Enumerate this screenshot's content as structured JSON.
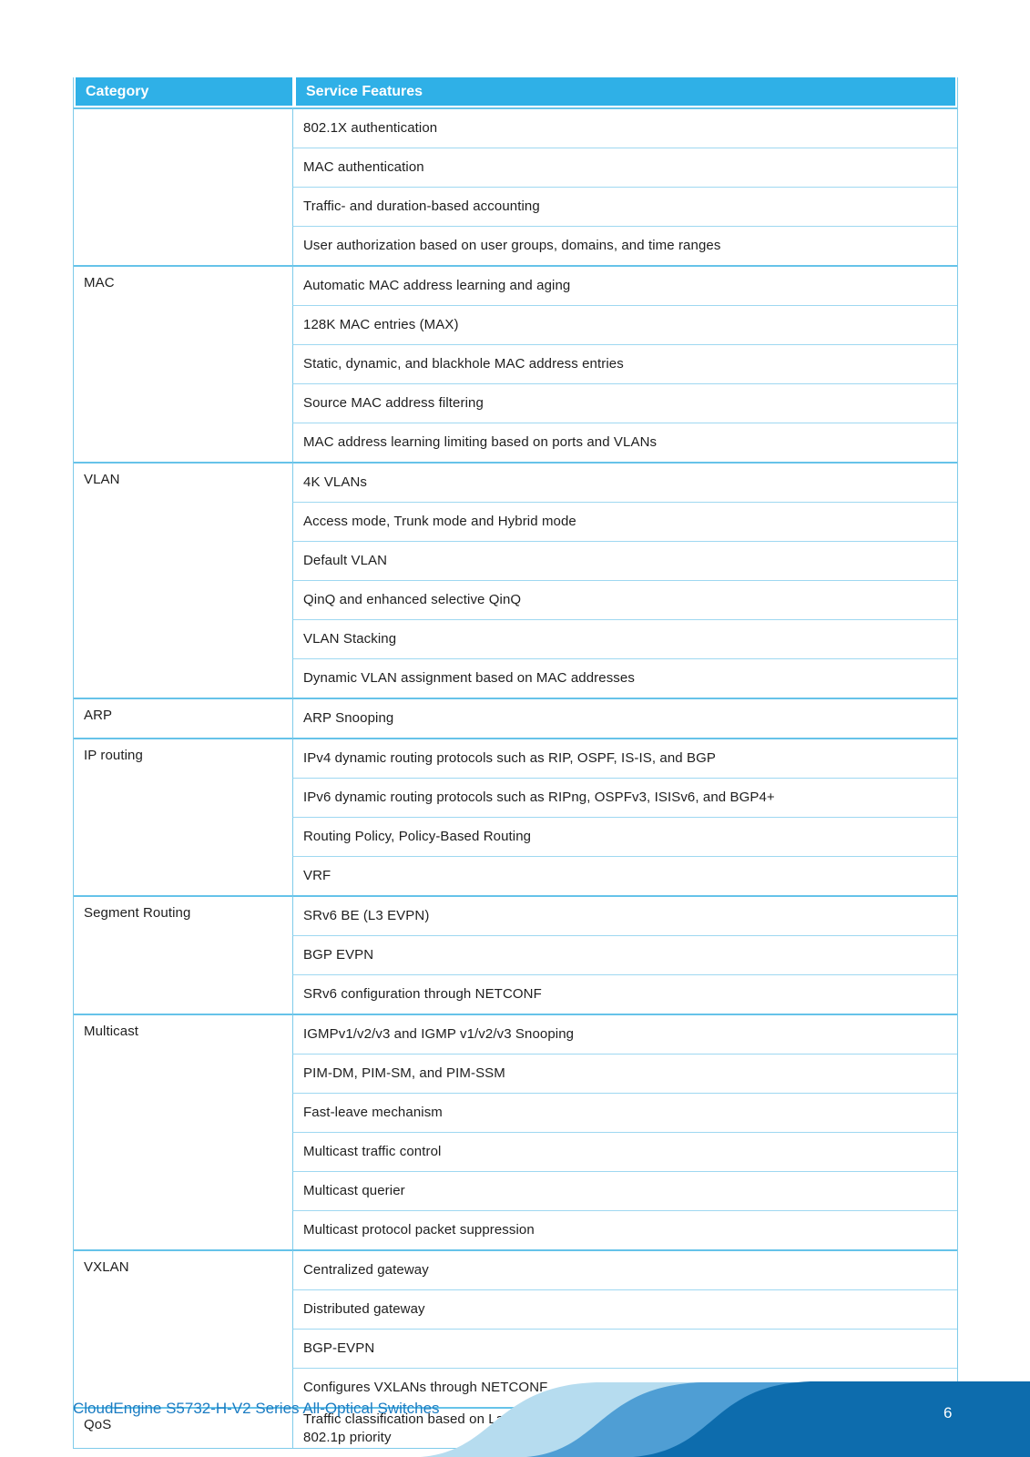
{
  "table": {
    "columns": [
      "Category",
      "Service Features"
    ],
    "groups": [
      {
        "category": "",
        "features": [
          "802.1X authentication",
          "MAC authentication",
          "Traffic- and duration-based accounting",
          "User authorization based on user groups, domains, and time ranges"
        ]
      },
      {
        "category": "MAC",
        "features": [
          "Automatic MAC address learning and aging",
          "128K MAC entries (MAX)",
          "Static, dynamic, and blackhole MAC address entries",
          "Source MAC address filtering",
          "MAC address learning limiting based on ports and VLANs"
        ]
      },
      {
        "category": "VLAN",
        "features": [
          "4K VLANs",
          "Access mode, Trunk mode and Hybrid mode",
          "Default VLAN",
          "QinQ and enhanced selective QinQ",
          "VLAN Stacking",
          "Dynamic VLAN assignment based on MAC addresses"
        ]
      },
      {
        "category": "ARP",
        "features": [
          "ARP Snooping"
        ]
      },
      {
        "category": "IP routing",
        "features": [
          "IPv4 dynamic routing protocols such as RIP, OSPF, IS-IS, and BGP",
          "IPv6 dynamic routing protocols such as RIPng, OSPFv3, ISISv6, and BGP4+",
          "Routing Policy, Policy-Based Routing",
          "VRF"
        ]
      },
      {
        "category": "Segment Routing",
        "features": [
          "SRv6 BE (L3 EVPN)",
          "BGP EVPN",
          "SRv6 configuration through NETCONF"
        ]
      },
      {
        "category": "Multicast",
        "features": [
          "IGMPv1/v2/v3 and IGMP v1/v2/v3 Snooping",
          "PIM-DM, PIM-SM, and PIM-SSM",
          "Fast-leave mechanism",
          "Multicast traffic control",
          "Multicast querier",
          "Multicast protocol packet suppression"
        ]
      },
      {
        "category": "VXLAN",
        "features": [
          "Centralized gateway",
          "Distributed gateway",
          "BGP-EVPN",
          "Configures VXLANs through NETCONF"
        ]
      },
      {
        "category": "QoS",
        "features": [
          "Traffic classification based on Layer 2 headers, Layer 3 protocols, Layer 4 protocols, and 802.1p priority"
        ]
      }
    ]
  },
  "footer": {
    "title": "CloudEngine S5732-H-V2 Series All-Optical Switches",
    "page_number": "6"
  },
  "colors": {
    "table_header_bg": "#2fb0e7",
    "table_border": "#7ecbea",
    "group_separator": "#66c3e9",
    "body_text": "#1e1e1e",
    "footer_text": "#1b7cc2",
    "wave_light": "#b6dcef",
    "wave_medium": "#4f9ed4",
    "wave_dark": "#0d6cad",
    "page_number_text": "#ffffff"
  }
}
